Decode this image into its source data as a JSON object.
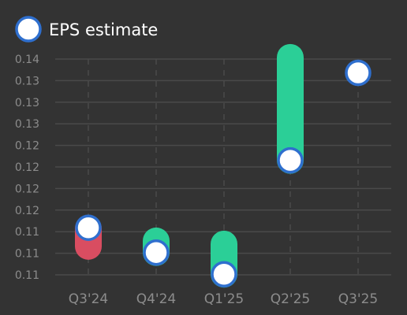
{
  "chart_data": {
    "type": "range-dot",
    "title": "",
    "xlabel": "",
    "ylabel": "",
    "categories": [
      "Q3'24",
      "Q4'24",
      "Q1'25",
      "Q2'25",
      "Q3'25"
    ],
    "y_ticks": [
      "0.11",
      "0.11",
      "0.11",
      "0.12",
      "0.12",
      "0.12",
      "0.12",
      "0.13",
      "0.13",
      "0.13",
      "0.14"
    ],
    "ylim": [
      0.108,
      0.1385
    ],
    "grid": true,
    "legend": {
      "position": "top-left",
      "entries": [
        {
          "label": "EPS estimate",
          "marker": "circle"
        }
      ]
    },
    "series": [
      {
        "name": "EPS estimate",
        "values": [
          0.1154,
          0.1122,
          0.1094,
          0.1241,
          0.1354
        ]
      }
    ],
    "ranges": [
      {
        "low": 0.113,
        "high": 0.1153,
        "color": "#d94d61"
      },
      {
        "low": 0.1122,
        "high": 0.1137,
        "color": "#2bcf97"
      },
      {
        "low": 0.1094,
        "high": 0.1133,
        "color": "#2bcf97"
      },
      {
        "low": 0.1241,
        "high": 0.1374,
        "color": "#2bcf97"
      },
      null
    ]
  },
  "colors": {
    "background": "#333333",
    "grid": "#4a4a4a",
    "tick_text": "#8c8c8c",
    "legend_text": "#ffffff",
    "marker_fill": "#ffffff",
    "marker_stroke": "#2f6fce",
    "beat": "#2bcf97",
    "miss": "#d94d61"
  }
}
